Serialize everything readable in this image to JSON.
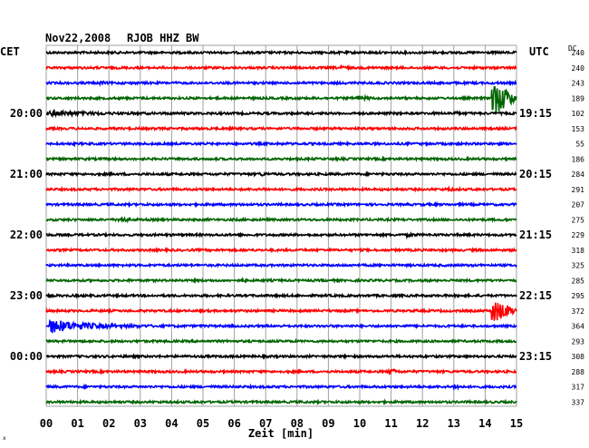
{
  "header": {
    "date": "Nov22,2008",
    "station": "RJOB HHZ BW",
    "left_zone": "CET",
    "right_zone": "UTC",
    "dc_label": "DC"
  },
  "footer": {
    "xlabel": "Zeit [min]",
    "corner_mark": "x"
  },
  "chart_data": {
    "type": "line",
    "title": "Nov22,2008 RJOB HHZ BW",
    "xlabel": "Zeit [min]",
    "xlim": [
      0,
      15
    ],
    "x_ticks": [
      "00",
      "01",
      "02",
      "03",
      "04",
      "05",
      "06",
      "07",
      "08",
      "09",
      "10",
      "11",
      "12",
      "13",
      "14",
      "15"
    ],
    "colors": {
      "black": "#000000",
      "red": "#ff0000",
      "blue": "#0000ff",
      "green": "#006400"
    },
    "left_time_labels": [
      {
        "trace": 4,
        "label": "20:00"
      },
      {
        "trace": 8,
        "label": "21:00"
      },
      {
        "trace": 12,
        "label": "22:00"
      },
      {
        "trace": 16,
        "label": "23:00"
      },
      {
        "trace": 20,
        "label": "00:00"
      }
    ],
    "right_time_labels": [
      {
        "trace": 4,
        "label": "19:15"
      },
      {
        "trace": 8,
        "label": "20:15"
      },
      {
        "trace": 12,
        "label": "21:15"
      },
      {
        "trace": 16,
        "label": "22:15"
      },
      {
        "trace": 20,
        "label": "23:15"
      }
    ],
    "traces": [
      {
        "color": "black",
        "dc": "240",
        "events": []
      },
      {
        "color": "red",
        "dc": "240",
        "events": [
          {
            "t": 9.3,
            "amp": 0.6,
            "dur": 0.4
          }
        ]
      },
      {
        "color": "blue",
        "dc": "243",
        "events": [
          {
            "t": 1.7,
            "amp": 0.5,
            "dur": 0.3
          }
        ]
      },
      {
        "color": "green",
        "dc": "189",
        "events": [
          {
            "t": 9.9,
            "amp": 0.8,
            "dur": 0.5
          },
          {
            "t": 14.2,
            "amp": 8,
            "dur": 0.9
          }
        ]
      },
      {
        "color": "black",
        "dc": "102",
        "events": [
          {
            "t": 0.1,
            "amp": 1.8,
            "dur": 3.0
          },
          {
            "t": 13.0,
            "amp": 0.8,
            "dur": 0.2
          }
        ]
      },
      {
        "color": "red",
        "dc": "153",
        "events": []
      },
      {
        "color": "blue",
        "dc": "55",
        "events": []
      },
      {
        "color": "green",
        "dc": "186",
        "events": []
      },
      {
        "color": "black",
        "dc": "284",
        "events": [
          {
            "t": 6.8,
            "amp": 0.5,
            "dur": 0.3
          }
        ]
      },
      {
        "color": "red",
        "dc": "291",
        "events": [
          {
            "t": 6.9,
            "amp": 0.4,
            "dur": 0.3
          },
          {
            "t": 12.8,
            "amp": 0.4,
            "dur": 0.3
          }
        ]
      },
      {
        "color": "blue",
        "dc": "207",
        "events": []
      },
      {
        "color": "green",
        "dc": "275",
        "events": [
          {
            "t": 2.3,
            "amp": 0.9,
            "dur": 0.4
          }
        ]
      },
      {
        "color": "black",
        "dc": "229",
        "events": [
          {
            "t": 11.5,
            "amp": 0.4,
            "dur": 0.4
          }
        ]
      },
      {
        "color": "red",
        "dc": "318",
        "events": []
      },
      {
        "color": "blue",
        "dc": "325",
        "events": []
      },
      {
        "color": "green",
        "dc": "285",
        "events": [
          {
            "t": 6.2,
            "amp": 0.5,
            "dur": 0.3
          }
        ]
      },
      {
        "color": "black",
        "dc": "295",
        "events": []
      },
      {
        "color": "red",
        "dc": "372",
        "events": [
          {
            "t": 14.2,
            "amp": 5,
            "dur": 0.9
          }
        ]
      },
      {
        "color": "blue",
        "dc": "364",
        "events": [
          {
            "t": 0.1,
            "amp": 6,
            "dur": 2.8
          }
        ]
      },
      {
        "color": "green",
        "dc": "293",
        "events": []
      },
      {
        "color": "black",
        "dc": "308",
        "events": []
      },
      {
        "color": "red",
        "dc": "288",
        "events": [
          {
            "t": 10.9,
            "amp": 1.1,
            "dur": 0.4
          }
        ]
      },
      {
        "color": "blue",
        "dc": "317",
        "events": [
          {
            "t": 13.0,
            "amp": 0.9,
            "dur": 0.3
          }
        ]
      },
      {
        "color": "green",
        "dc": "337",
        "events": []
      }
    ]
  }
}
